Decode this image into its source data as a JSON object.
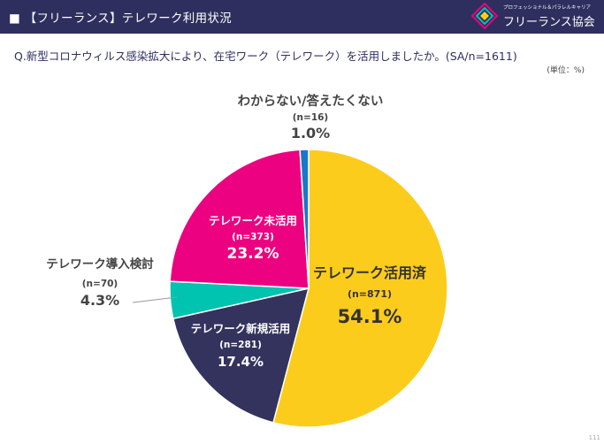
{
  "header": {
    "title": "■ 【フリーランス】テレワーク利用状況",
    "logo_small_text": "プロフェッショナル＆パラレルキャリア",
    "logo_name": "フリーランス協会"
  },
  "question": "Q.新型コロナウィルス感染拡大により、在宅ワーク（テレワーク）を活用しましたか。(SA/n=1611)",
  "unit": "(単位：%)",
  "page_no": "111",
  "colors": {
    "header_bg": "#2e2f5e",
    "used": "#fccc1c",
    "new_use": "#33335e",
    "considering": "#00c3b0",
    "not_used": "#ec0281",
    "unknown": "#1878c8"
  },
  "chart_data": {
    "type": "pie",
    "start": "12 o'clock",
    "direction": "clockwise",
    "slices": [
      {
        "label": "テレワーク活用済",
        "n": "(n=871)",
        "pct": "54.1%",
        "value": 54.1,
        "color": "#fccc1c"
      },
      {
        "label": "テレワーク新規活用",
        "n": "(n=281)",
        "pct": "17.4%",
        "value": 17.4,
        "color": "#33335e"
      },
      {
        "label": "テレワーク導入検討",
        "n": "(n=70)",
        "pct": "4.3%",
        "value": 4.3,
        "color": "#00c3b0"
      },
      {
        "label": "テレワーク未活用",
        "n": "(n=373)",
        "pct": "23.2%",
        "value": 23.2,
        "color": "#ec0281"
      },
      {
        "label": "わからない/答えたくない",
        "n": "(n=16)",
        "pct": "1.0%",
        "value": 1.0,
        "color": "#1878c8"
      }
    ]
  }
}
